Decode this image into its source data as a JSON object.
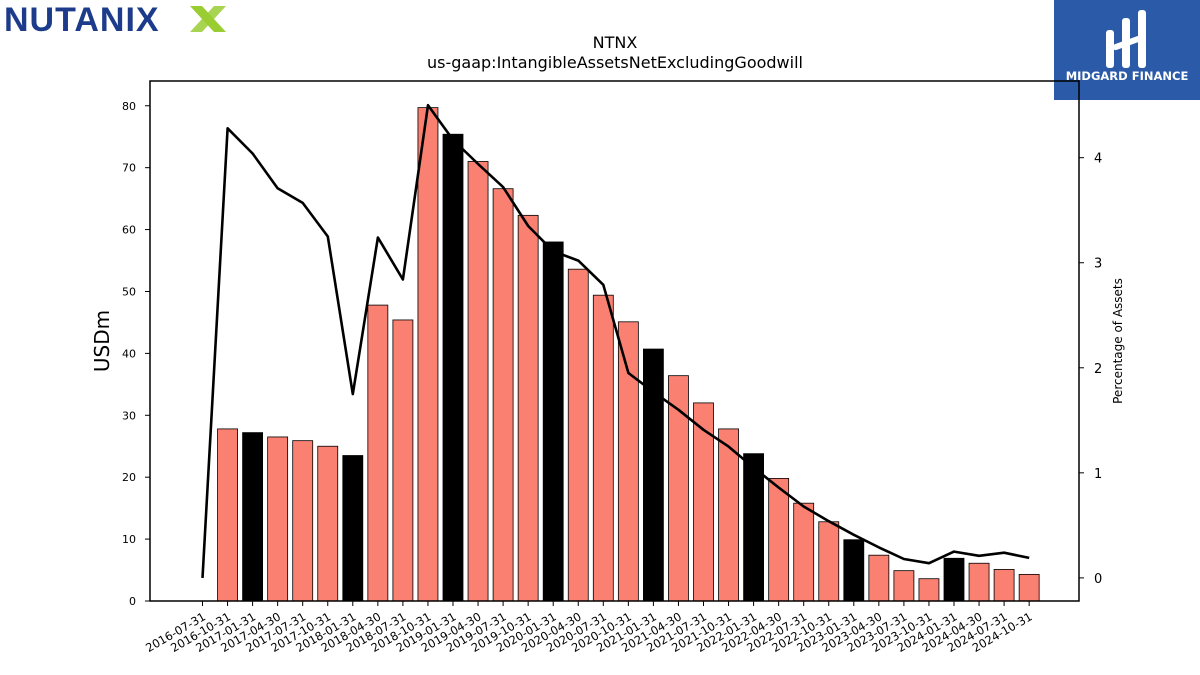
{
  "branding": {
    "left_logo_text": "NUTANIX",
    "left_logo_colors": {
      "text": "#1d3b8b",
      "x_accent": "#9acd32"
    },
    "right_logo_text": "MIDGARD FINANCE",
    "right_logo_bg": "#2b5aa8"
  },
  "chart_data": {
    "type": "bar",
    "title": "NTNX",
    "subtitle": "us-gaap:IntangibleAssetsNetExcludingGoodwill",
    "ylabel": "USDm",
    "y2label": "Percentage of Assets",
    "ylim": [
      0,
      84
    ],
    "y2lim": [
      -0.22,
      4.73
    ],
    "yticks": [
      0,
      10,
      20,
      30,
      40,
      50,
      60,
      70,
      80
    ],
    "y2ticks": [
      0,
      1,
      2,
      3,
      4
    ],
    "categories": [
      "2016-07-31",
      "2016-10-31",
      "2017-01-31",
      "2017-04-30",
      "2017-07-31",
      "2017-10-31",
      "2018-01-31",
      "2018-04-30",
      "2018-07-31",
      "2018-10-31",
      "2019-01-31",
      "2019-04-30",
      "2019-07-31",
      "2019-10-31",
      "2020-01-31",
      "2020-04-30",
      "2020-07-31",
      "2020-10-31",
      "2021-01-31",
      "2021-04-30",
      "2021-07-31",
      "2021-10-31",
      "2022-01-31",
      "2022-04-30",
      "2022-07-31",
      "2022-10-31",
      "2023-01-31",
      "2023-04-30",
      "2023-07-31",
      "2023-10-31",
      "2024-01-31",
      "2024-04-30",
      "2024-07-31",
      "2024-10-31"
    ],
    "series": [
      {
        "kind": "bar",
        "values": [
          0,
          27.8,
          27.2,
          26.5,
          25.9,
          25.0,
          23.5,
          47.8,
          45.4,
          79.7,
          75.4,
          71.0,
          66.6,
          62.3,
          58.0,
          53.6,
          49.4,
          45.1,
          40.7,
          36.4,
          32.0,
          27.8,
          23.8,
          19.8,
          15.8,
          12.8,
          9.9,
          7.4,
          4.9,
          3.6,
          6.9,
          6.1,
          5.1,
          4.3
        ],
        "colors": {
          "default": "#fa8072",
          "highlight": "#000000"
        },
        "highlight": [
          false,
          false,
          true,
          false,
          false,
          false,
          true,
          false,
          false,
          false,
          true,
          false,
          false,
          false,
          true,
          false,
          false,
          false,
          true,
          false,
          false,
          false,
          true,
          false,
          false,
          false,
          true,
          false,
          false,
          false,
          true,
          false,
          false,
          false
        ]
      },
      {
        "kind": "line",
        "axis": "right",
        "color": "#000000",
        "values": [
          0.0,
          4.28,
          4.04,
          3.71,
          3.57,
          3.25,
          1.75,
          3.24,
          2.84,
          4.5,
          4.17,
          3.94,
          3.72,
          3.35,
          3.11,
          3.02,
          2.79,
          1.95,
          1.77,
          1.6,
          1.41,
          1.25,
          1.05,
          0.86,
          0.68,
          0.54,
          0.41,
          0.29,
          0.18,
          0.14,
          0.25,
          0.21,
          0.24,
          0.19
        ]
      }
    ],
    "grid": false,
    "legend": "none"
  }
}
